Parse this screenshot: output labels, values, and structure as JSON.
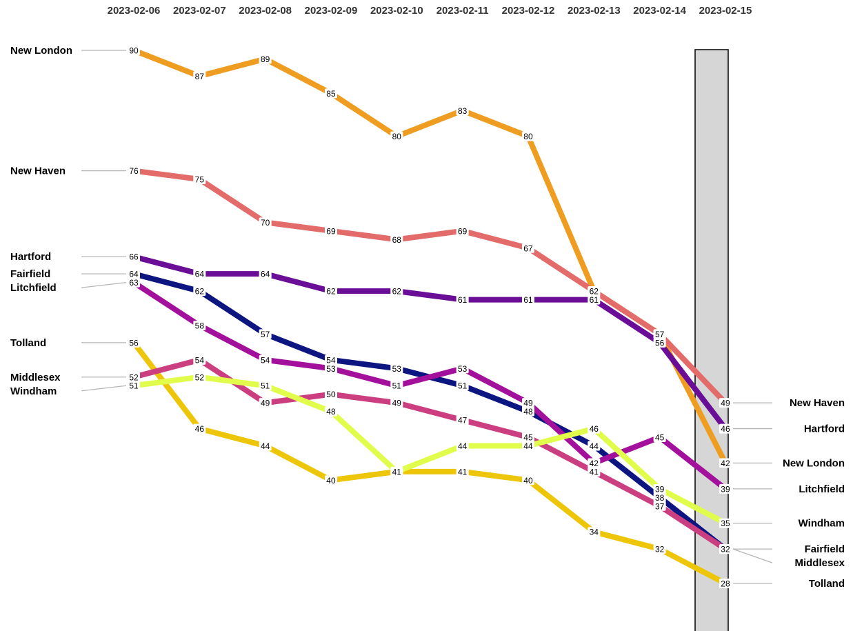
{
  "chart_data": {
    "type": "line",
    "title": "",
    "xlabel": "",
    "ylabel": "",
    "x": [
      "2023-02-06",
      "2023-02-07",
      "2023-02-08",
      "2023-02-09",
      "2023-02-10",
      "2023-02-11",
      "2023-02-12",
      "2023-02-13",
      "2023-02-14",
      "2023-02-15"
    ],
    "ylim": [
      28,
      90
    ],
    "grid": false,
    "legend": "labels at line ends (left and right)",
    "series": [
      {
        "name": "New London",
        "color": "#ef9d21",
        "values": [
          90,
          87,
          89,
          85,
          80,
          83,
          80,
          62,
          57,
          42
        ]
      },
      {
        "name": "New Haven",
        "color": "#e36b69",
        "values": [
          76,
          75,
          70,
          69,
          68,
          69,
          67,
          62,
          57,
          49
        ]
      },
      {
        "name": "Hartford",
        "color": "#6a0d97",
        "values": [
          66,
          64,
          64,
          62,
          62,
          61,
          61,
          61,
          56,
          46
        ]
      },
      {
        "name": "Fairfield",
        "color": "#0d1580",
        "values": [
          64,
          62,
          57,
          54,
          53,
          51,
          48,
          44,
          38,
          32
        ]
      },
      {
        "name": "Litchfield",
        "color": "#a3109c",
        "values": [
          63,
          58,
          54,
          53,
          51,
          53,
          49,
          42,
          45,
          39
        ]
      },
      {
        "name": "Tolland",
        "color": "#edc60a",
        "values": [
          56,
          46,
          44,
          40,
          41,
          41,
          40,
          34,
          32,
          28
        ]
      },
      {
        "name": "Middlesex",
        "color": "#cb3f80",
        "values": [
          52,
          54,
          49,
          50,
          49,
          47,
          45,
          41,
          37,
          32
        ]
      },
      {
        "name": "Windham",
        "color": "#e1fc4a",
        "values": [
          51,
          52,
          51,
          48,
          41,
          44,
          44,
          46,
          39,
          35
        ]
      }
    ]
  }
}
